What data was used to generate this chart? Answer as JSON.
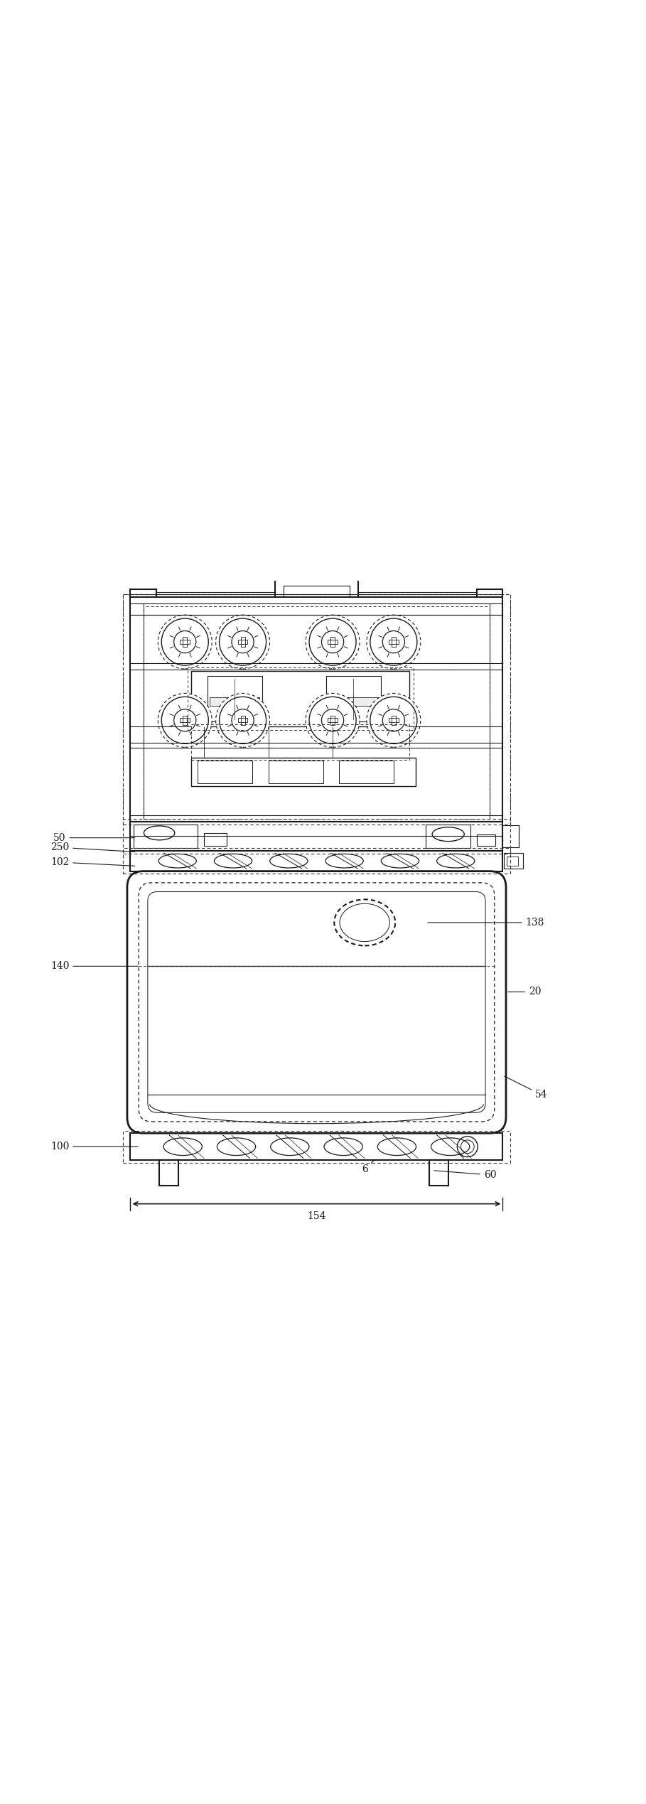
{
  "bg_color": "#ffffff",
  "line_color": "#1a1a1a",
  "dashed_color": "#333333",
  "label_color": "#111111",
  "fig_width": 9.09,
  "fig_height": 25.38
}
